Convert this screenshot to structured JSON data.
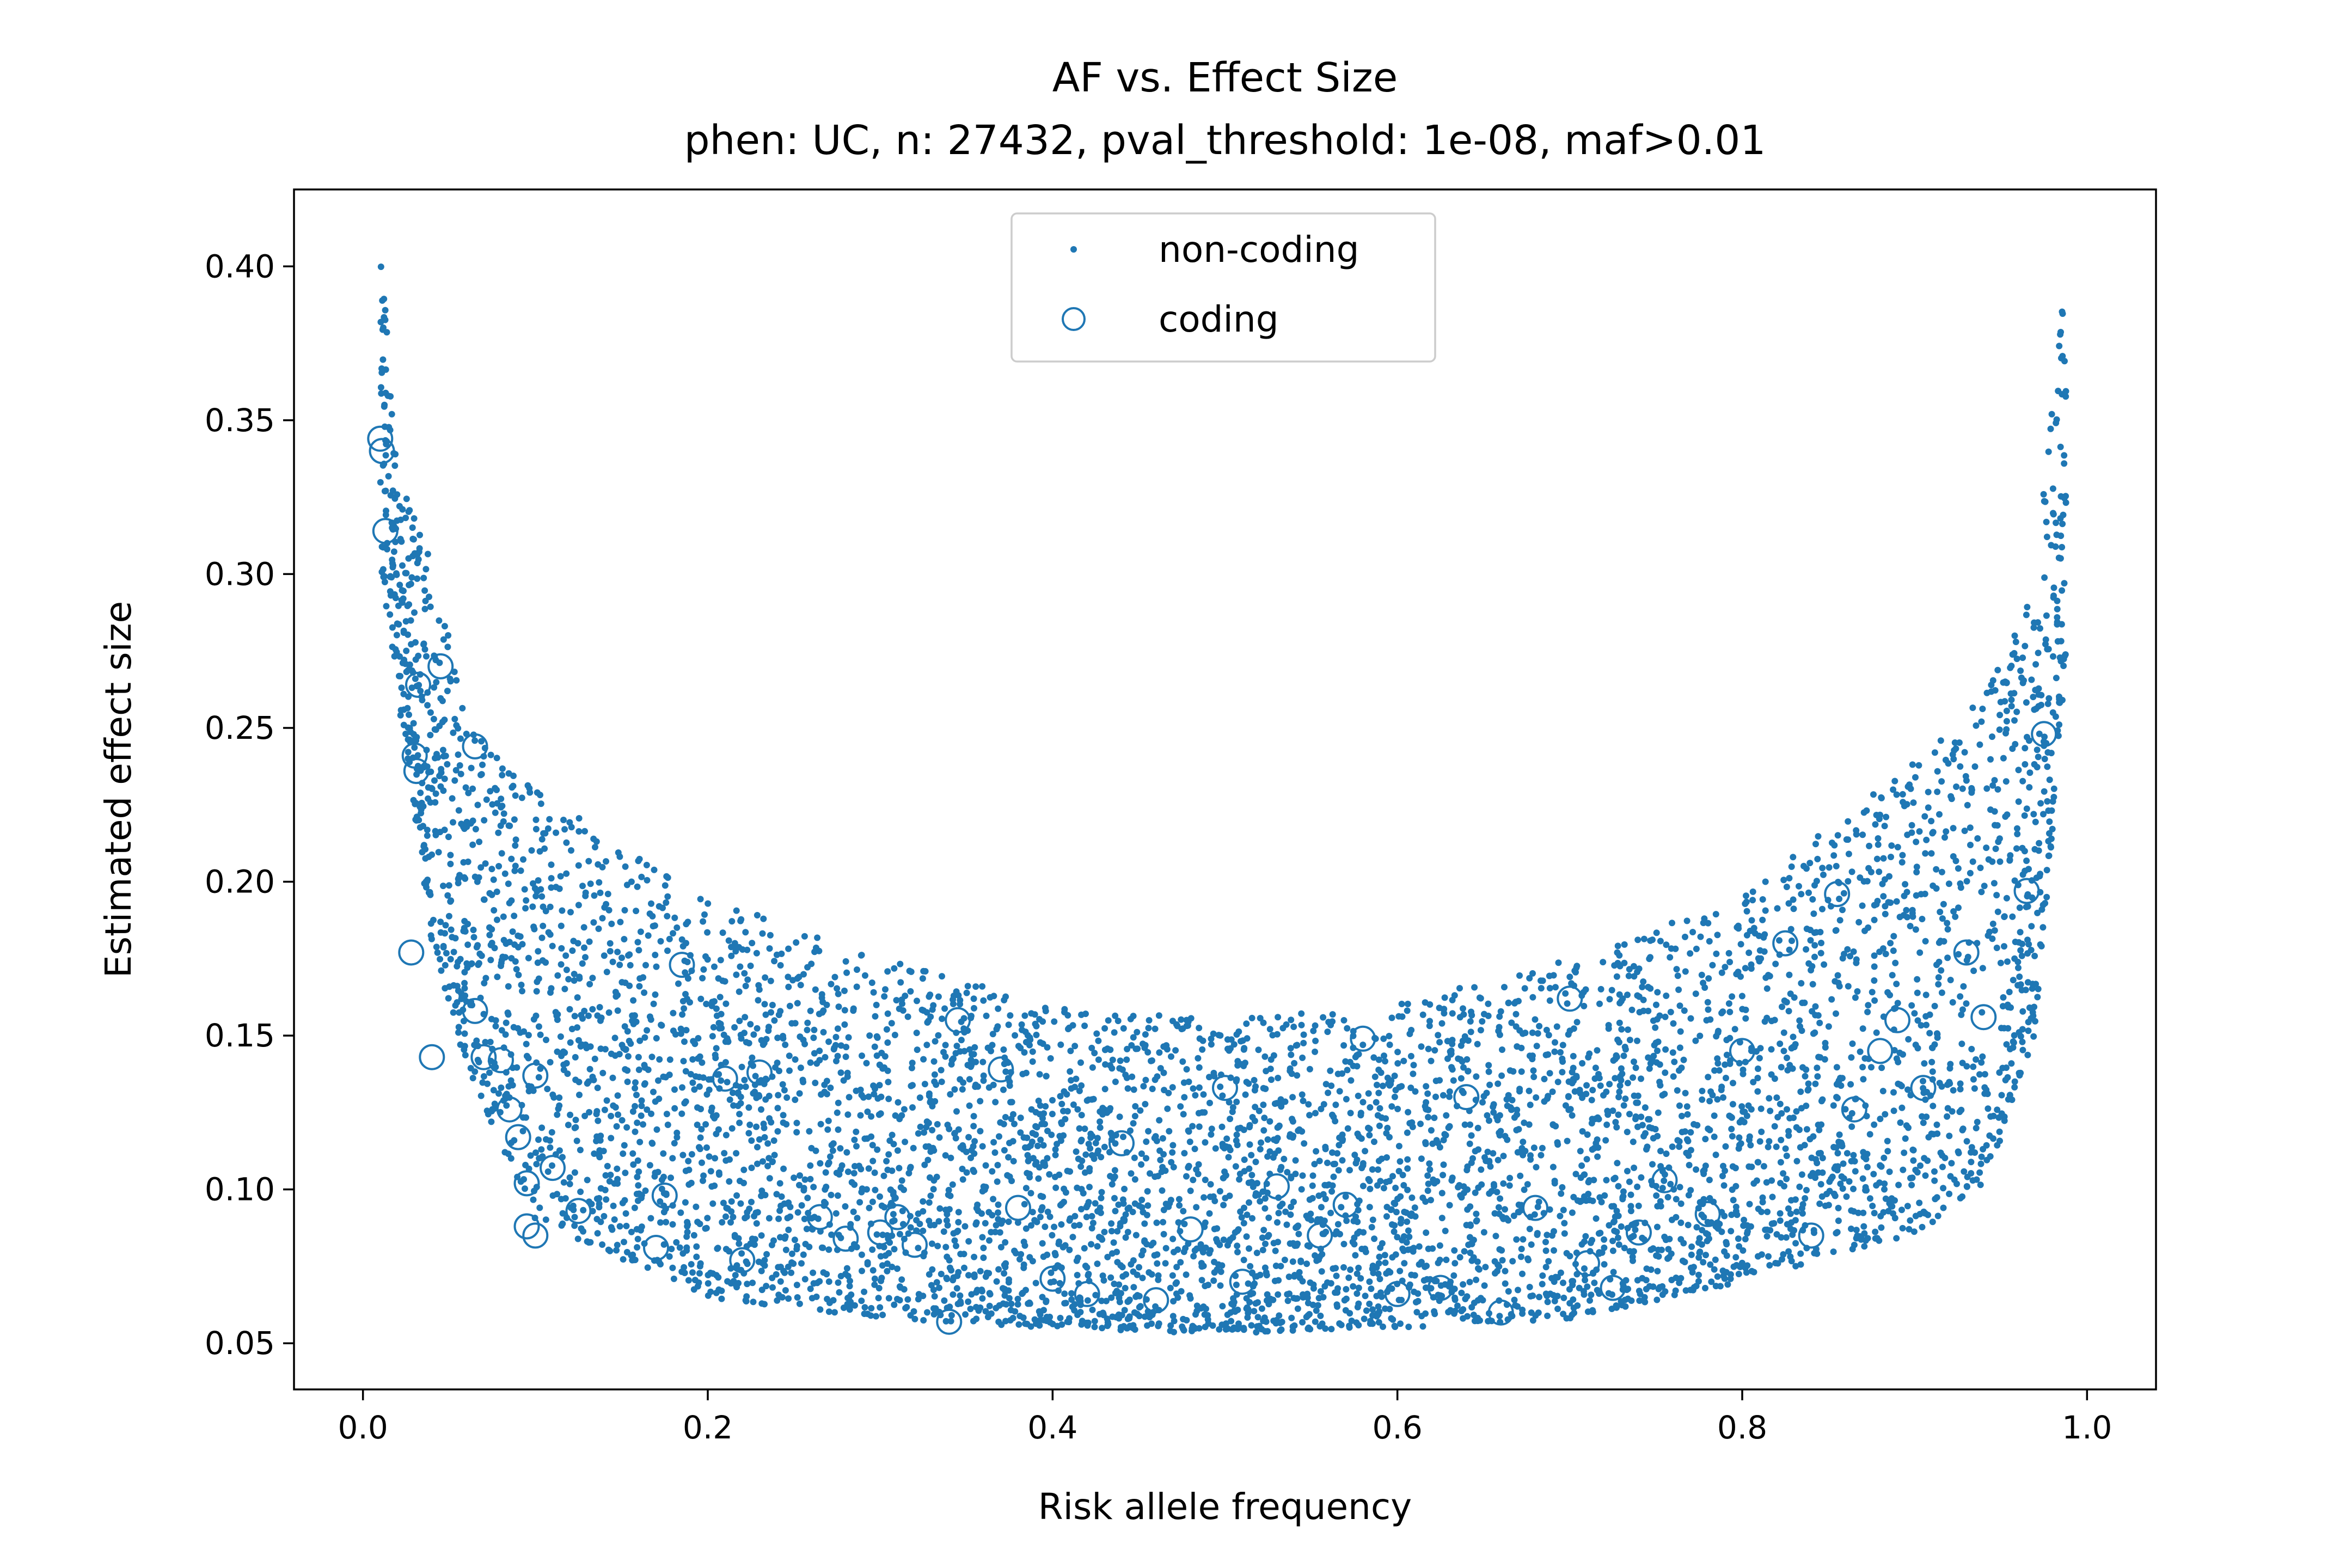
{
  "chart_data": {
    "type": "scatter",
    "title": "AF vs. Effect Size",
    "subtitle": "phen: UC, n: 27432, pval_threshold: 1e-08, maf>0.01",
    "xlabel": "Risk allele frequency",
    "ylabel": "Estimated effect size",
    "xlim": [
      -0.04,
      1.04
    ],
    "ylim": [
      0.035,
      0.425
    ],
    "xticks": [
      "0.0",
      "0.2",
      "0.4",
      "0.6",
      "0.8",
      "1.0"
    ],
    "yticks": [
      "0.05",
      "0.10",
      "0.15",
      "0.20",
      "0.25",
      "0.30",
      "0.35",
      "0.40"
    ],
    "grid": false,
    "legend": {
      "position": "upper-center",
      "entries": [
        "non-coding",
        "coding"
      ]
    },
    "colors": {
      "points": "#1f77b4"
    },
    "point_count_noncoding": 6000,
    "series": [
      {
        "name": "non-coding",
        "marker": "dot",
        "description": "dense U-shaped cloud of ~6000 variants; effect size minimal (~0.05-0.15) near AF 0.5 and rising steeply toward AF 0.01 and 0.99",
        "envelope": [
          {
            "x": 0.01,
            "y_min": 0.3,
            "y_max": 0.41
          },
          {
            "x": 0.02,
            "y_min": 0.26,
            "y_max": 0.33
          },
          {
            "x": 0.04,
            "y_min": 0.18,
            "y_max": 0.31
          },
          {
            "x": 0.06,
            "y_min": 0.14,
            "y_max": 0.25
          },
          {
            "x": 0.1,
            "y_min": 0.09,
            "y_max": 0.23
          },
          {
            "x": 0.2,
            "y_min": 0.065,
            "y_max": 0.195
          },
          {
            "x": 0.3,
            "y_min": 0.058,
            "y_max": 0.175
          },
          {
            "x": 0.4,
            "y_min": 0.055,
            "y_max": 0.16
          },
          {
            "x": 0.5,
            "y_min": 0.053,
            "y_max": 0.155
          },
          {
            "x": 0.6,
            "y_min": 0.055,
            "y_max": 0.16
          },
          {
            "x": 0.7,
            "y_min": 0.058,
            "y_max": 0.175
          },
          {
            "x": 0.8,
            "y_min": 0.07,
            "y_max": 0.195
          },
          {
            "x": 0.9,
            "y_min": 0.085,
            "y_max": 0.24
          },
          {
            "x": 0.94,
            "y_min": 0.1,
            "y_max": 0.26
          },
          {
            "x": 0.97,
            "y_min": 0.15,
            "y_max": 0.3
          },
          {
            "x": 0.985,
            "y_min": 0.25,
            "y_max": 0.39
          }
        ]
      },
      {
        "name": "coding",
        "marker": "open-circle",
        "points": [
          [
            0.01,
            0.344
          ],
          [
            0.011,
            0.34
          ],
          [
            0.013,
            0.314
          ],
          [
            0.032,
            0.264
          ],
          [
            0.045,
            0.27
          ],
          [
            0.03,
            0.241
          ],
          [
            0.031,
            0.236
          ],
          [
            0.065,
            0.244
          ],
          [
            0.028,
            0.177
          ],
          [
            0.04,
            0.143
          ],
          [
            0.07,
            0.143
          ],
          [
            0.08,
            0.142
          ],
          [
            0.065,
            0.158
          ],
          [
            0.1,
            0.137
          ],
          [
            0.085,
            0.126
          ],
          [
            0.09,
            0.117
          ],
          [
            0.095,
            0.102
          ],
          [
            0.11,
            0.107
          ],
          [
            0.125,
            0.093
          ],
          [
            0.095,
            0.088
          ],
          [
            0.1,
            0.085
          ],
          [
            0.17,
            0.081
          ],
          [
            0.175,
            0.098
          ],
          [
            0.185,
            0.173
          ],
          [
            0.21,
            0.136
          ],
          [
            0.23,
            0.138
          ],
          [
            0.22,
            0.077
          ],
          [
            0.265,
            0.091
          ],
          [
            0.28,
            0.084
          ],
          [
            0.3,
            0.086
          ],
          [
            0.31,
            0.091
          ],
          [
            0.32,
            0.082
          ],
          [
            0.34,
            0.057
          ],
          [
            0.345,
            0.155
          ],
          [
            0.37,
            0.139
          ],
          [
            0.38,
            0.094
          ],
          [
            0.4,
            0.071
          ],
          [
            0.42,
            0.066
          ],
          [
            0.44,
            0.115
          ],
          [
            0.46,
            0.064
          ],
          [
            0.48,
            0.087
          ],
          [
            0.5,
            0.133
          ],
          [
            0.51,
            0.07
          ],
          [
            0.53,
            0.101
          ],
          [
            0.555,
            0.085
          ],
          [
            0.57,
            0.095
          ],
          [
            0.58,
            0.149
          ],
          [
            0.6,
            0.066
          ],
          [
            0.625,
            0.068
          ],
          [
            0.64,
            0.13
          ],
          [
            0.66,
            0.06
          ],
          [
            0.68,
            0.094
          ],
          [
            0.7,
            0.162
          ],
          [
            0.71,
            0.076
          ],
          [
            0.725,
            0.068
          ],
          [
            0.74,
            0.086
          ],
          [
            0.755,
            0.103
          ],
          [
            0.78,
            0.092
          ],
          [
            0.8,
            0.145
          ],
          [
            0.825,
            0.18
          ],
          [
            0.84,
            0.085
          ],
          [
            0.855,
            0.196
          ],
          [
            0.865,
            0.126
          ],
          [
            0.88,
            0.145
          ],
          [
            0.89,
            0.155
          ],
          [
            0.905,
            0.133
          ],
          [
            0.93,
            0.177
          ],
          [
            0.94,
            0.156
          ],
          [
            0.965,
            0.197
          ],
          [
            0.975,
            0.248
          ]
        ]
      }
    ]
  }
}
